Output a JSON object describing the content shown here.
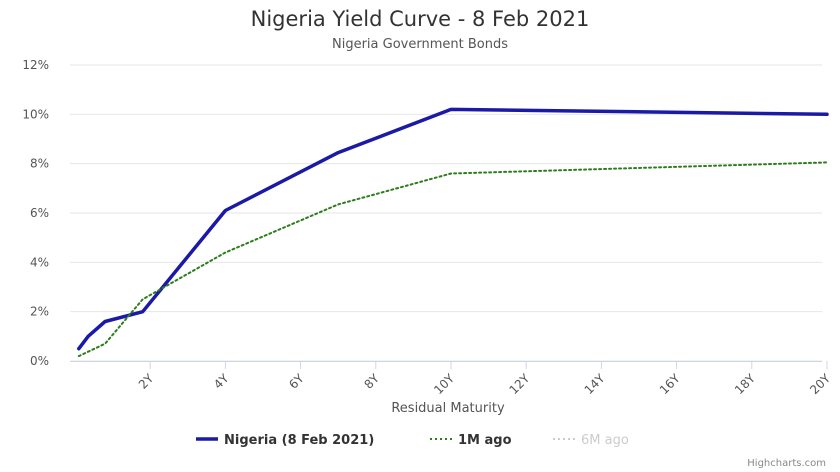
{
  "chart_data": {
    "type": "line",
    "title": "Nigeria Yield Curve - 8 Feb 2021",
    "subtitle": "Nigeria Government Bonds",
    "xlabel": "Residual Maturity",
    "ylabel": "",
    "xlim": [
      0,
      20
    ],
    "ylim": [
      0,
      12
    ],
    "x_ticks": [
      2,
      4,
      6,
      8,
      10,
      12,
      14,
      16,
      18,
      20
    ],
    "x_tick_labels": [
      "2Y",
      "4Y",
      "6Y",
      "8Y",
      "10Y",
      "12Y",
      "14Y",
      "16Y",
      "18Y",
      "20Y"
    ],
    "y_ticks": [
      0,
      2,
      4,
      6,
      8,
      10,
      12
    ],
    "y_tick_labels": [
      "0%",
      "2%",
      "4%",
      "6%",
      "8%",
      "10%",
      "12%"
    ],
    "grid": true,
    "legend_position": "bottom-center",
    "credits": "Highcharts.com",
    "series": [
      {
        "name": "Nigeria (8 Feb 2021)",
        "color": "#1a1aa6",
        "style": "solid",
        "points": [
          [
            0.1,
            0.5
          ],
          [
            0.35,
            1.0
          ],
          [
            0.8,
            1.6
          ],
          [
            1.8,
            2.0
          ],
          [
            4.0,
            6.1
          ],
          [
            7.0,
            8.45
          ],
          [
            10.0,
            10.2
          ],
          [
            20.0,
            10.0
          ]
        ]
      },
      {
        "name": "1M ago",
        "color": "#2e7d1c",
        "style": "dotted",
        "points": [
          [
            0.1,
            0.2
          ],
          [
            0.8,
            0.7
          ],
          [
            1.8,
            2.5
          ],
          [
            4.0,
            4.4
          ],
          [
            7.0,
            6.35
          ],
          [
            10.0,
            7.6
          ],
          [
            20.0,
            8.05
          ]
        ]
      },
      {
        "name": "6M ago",
        "color": "#cccccc",
        "style": "dotted",
        "hidden": true,
        "points": []
      }
    ]
  }
}
